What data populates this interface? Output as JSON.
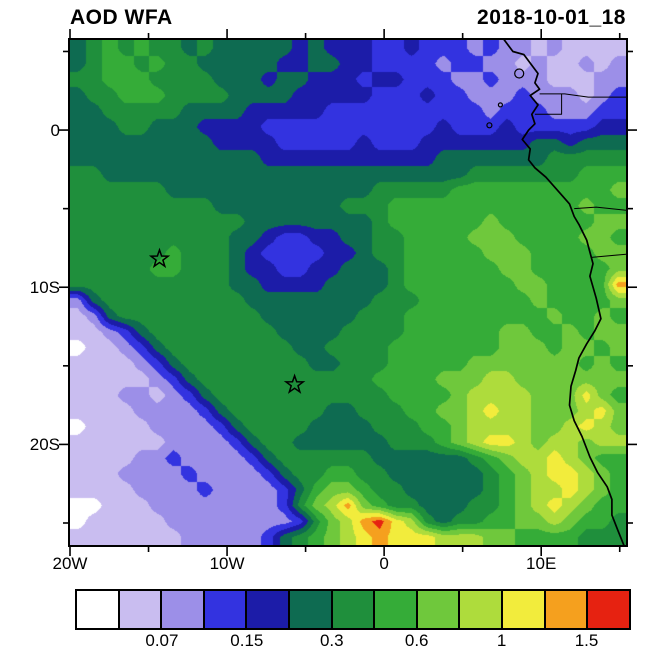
{
  "header": {
    "title": "AOD WFA",
    "date": "2018-10-01_18"
  },
  "chart_data": {
    "type": "heatmap",
    "title": "AOD WFA",
    "timestamp_label": "2018-10-01_18",
    "axes": {
      "lon_min": -20,
      "lon_max": 15.4,
      "lat_min": -26.4,
      "lat_max": 5.73,
      "x_major": [
        {
          "value": -20,
          "label": "20W"
        },
        {
          "value": -10,
          "label": "10W"
        },
        {
          "value": 0,
          "label": "0"
        },
        {
          "value": 10,
          "label": "10E"
        }
      ],
      "x_minor": [
        -15,
        -5,
        5,
        15
      ],
      "y_major": [
        {
          "value": 0,
          "label": "0"
        },
        {
          "value": -10,
          "label": "10S"
        },
        {
          "value": -20,
          "label": "20S"
        }
      ],
      "y_minor": [
        5,
        -5,
        -15,
        -25
      ]
    },
    "colorbar": {
      "colors": [
        "#FFFFFF",
        "#C9BDF0",
        "#9C8FE8",
        "#3333E0",
        "#1C1CA8",
        "#0E6B51",
        "#1F8F3C",
        "#35AC38",
        "#6FC83C",
        "#AEDC3C",
        "#F2EC3C",
        "#F5A01E",
        "#E62211"
      ],
      "tick_labels": [
        "0.07",
        "0.15",
        "0.3",
        "0.6",
        "1",
        "1.5"
      ],
      "tick_positions": [
        2,
        4,
        6,
        8,
        10,
        12
      ]
    },
    "grid": {
      "cols": 35,
      "rows": 32,
      "encoding": "each char = color bin index of cell (0-9,a,b,c), row 0 = north, col 0 = west, spaces ignored",
      "rows_data": [
        "56767 66565 55554 54443 34333 23221 21111",
        "56776 76655 55544 55443 33323 32212 11212",
        "66777 66665 55455 44434 43332 23222 11122",
        "56677 76666 55554 44443 33433 22232 22123",
        "55666 66555 54444 43333 33333 32333 22233",
        "55566 55544 44333 33333 33343 33433 33344",
        "55555 55554 44433 33343 33444 44445 54555",
        "55555 55555 55444 44444 44455 55555 66666",
        "66555 55555 55555 55555 55555 66666 66777",
        "66666 65555 55555 55556 66667 77777 77778",
        "66666 66665 55555 55666 77777 77777 77877",
        "66666 66666 65555 55556 77777 78777 77788",
        "66666 66666 55433 44556 67777 88877 77887",
        "66666 67666 54333 34456 67777 78887 77788",
        "66666 77666 54433 44555 67777 77887 77778",
        "66666 66666 55444 45555 67777 77788 7777b",
        "25666 66666 65555 55556 66777 77778 77778",
        "12566 66666 66555 55566 67777 77777 87787",
        "11235 66666 66655 55666 67777 77887 78788",
        "01123 56666 66665 56666 77777 77888 78878",
        "11112 35666 66666 55666 77777 88888 88787",
        "11111 23566 66666 66667 77788 89988 88888",
        "11122 12356 66666 66666 77778 99998 88a87",
        "11112 22235 66666 65566 67788 9a998 889a8",
        "01111 22223 56666 55556 66778 99998 89a98",
        "11111 12222 35665 55555 66678 9aa98 99899",
        "11112 23222 23566 66665 55555 67899 a9877",
        "11122 22322 22356 67766 55555 56789 aa987",
        "11112 22232 22235 78876 65555 56789 9a987",
        "00111 22222 22236 89b87 66555 66789 a9877",
        "01111 12222 22223 689bc a9656 67788 98776",
        "11111 11222 22356 789ab aaa99 98877 77666"
      ]
    },
    "markers": [
      {
        "lon": -14.3,
        "lat": -8.2
      },
      {
        "lon": -5.7,
        "lat": -16.2
      }
    ],
    "coastline": [
      [
        7.6,
        5.8
      ],
      [
        8.2,
        5.0
      ],
      [
        8.9,
        4.8
      ],
      [
        9.5,
        4.0
      ],
      [
        9.8,
        3.6
      ],
      [
        9.6,
        3.0
      ],
      [
        9.9,
        2.6
      ],
      [
        9.3,
        2.2
      ],
      [
        9.8,
        1.6
      ],
      [
        9.4,
        1.0
      ],
      [
        9.6,
        0.4
      ],
      [
        9.2,
        0.0
      ],
      [
        8.8,
        -0.6
      ],
      [
        9.3,
        -1.2
      ],
      [
        9.2,
        -1.9
      ],
      [
        9.6,
        -2.4
      ],
      [
        10.3,
        -3.0
      ],
      [
        11.1,
        -3.9
      ],
      [
        11.8,
        -4.7
      ],
      [
        12.1,
        -5.5
      ],
      [
        12.4,
        -6.0
      ],
      [
        12.9,
        -7.0
      ],
      [
        13.3,
        -8.5
      ],
      [
        13.1,
        -9.3
      ],
      [
        13.5,
        -10.7
      ],
      [
        13.8,
        -12.0
      ],
      [
        13.4,
        -12.8
      ],
      [
        12.9,
        -13.6
      ],
      [
        12.4,
        -14.5
      ],
      [
        12.2,
        -15.3
      ],
      [
        11.9,
        -16.3
      ],
      [
        11.8,
        -17.5
      ],
      [
        12.1,
        -18.5
      ],
      [
        12.6,
        -19.5
      ],
      [
        13.1,
        -20.8
      ],
      [
        13.6,
        -21.8
      ],
      [
        14.2,
        -22.7
      ],
      [
        14.5,
        -23.5
      ],
      [
        14.5,
        -24.5
      ],
      [
        14.9,
        -25.5
      ],
      [
        15.3,
        -26.5
      ]
    ],
    "borders": [
      [
        [
          9.9,
          2.3
        ],
        [
          11.5,
          2.3
        ],
        [
          13.0,
          2.1
        ],
        [
          15.4,
          2.1
        ]
      ],
      [
        [
          9.6,
          1.0
        ],
        [
          11.3,
          1.0
        ],
        [
          11.3,
          2.3
        ]
      ],
      [
        [
          12.1,
          -5.0
        ],
        [
          13.5,
          -4.9
        ],
        [
          15.4,
          -5.1
        ]
      ],
      [
        [
          13.2,
          -8.1
        ],
        [
          15.4,
          -7.9
        ]
      ]
    ],
    "islands": [
      {
        "lon": 8.6,
        "lat": 3.6,
        "r": 4.5
      },
      {
        "lon": 7.4,
        "lat": 1.6,
        "r": 2
      },
      {
        "lon": 6.7,
        "lat": 0.3,
        "r": 2.5
      }
    ]
  }
}
